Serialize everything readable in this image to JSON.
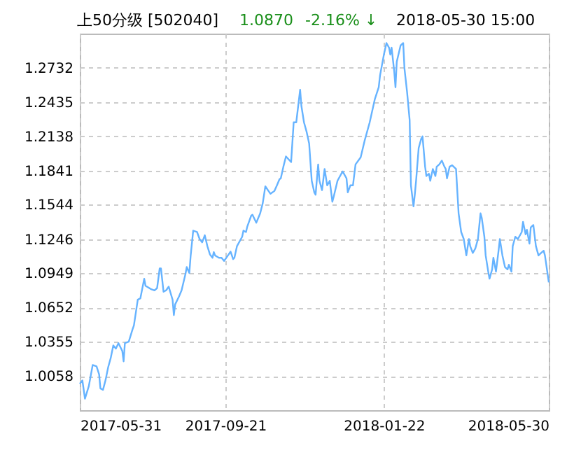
{
  "chart_data": {
    "type": "line",
    "title": "上50分级 [502040]",
    "annotations": [
      "1.0870",
      "-2.16% ↓",
      "2018-05-30 15:00"
    ],
    "x": [
      "2017-05-31",
      "2017-06-02",
      "2017-06-04",
      "2017-06-07",
      "2017-06-10",
      "2017-06-13",
      "2017-06-15",
      "2017-06-16",
      "2017-06-18",
      "2017-06-20",
      "2017-06-22",
      "2017-06-24",
      "2017-06-26",
      "2017-06-28",
      "2017-06-30",
      "2017-07-03",
      "2017-07-04",
      "2017-07-05",
      "2017-07-08",
      "2017-07-11",
      "2017-07-12",
      "2017-07-15",
      "2017-07-17",
      "2017-07-20",
      "2017-07-21",
      "2017-07-25",
      "2017-07-28",
      "2017-07-30",
      "2017-08-01",
      "2017-08-02",
      "2017-08-04",
      "2017-08-06",
      "2017-08-08",
      "2017-08-11",
      "2017-08-12",
      "2017-08-13",
      "2017-08-16",
      "2017-08-18",
      "2017-08-21",
      "2017-08-22",
      "2017-08-24",
      "2017-08-25",
      "2017-08-27",
      "2017-08-30",
      "2017-09-01",
      "2017-09-03",
      "2017-09-05",
      "2017-09-07",
      "2017-09-09",
      "2017-09-11",
      "2017-09-12",
      "2017-09-13",
      "2017-09-16",
      "2017-09-18",
      "2017-09-20",
      "2017-09-23",
      "2017-09-25",
      "2017-09-27",
      "2017-09-28",
      "2017-09-30",
      "2017-10-04",
      "2017-10-05",
      "2017-10-07",
      "2017-10-08",
      "2017-10-11",
      "2017-10-12",
      "2017-10-15",
      "2017-10-18",
      "2017-10-20",
      "2017-10-22",
      "2017-10-24",
      "2017-10-26",
      "2017-10-29",
      "2017-10-31",
      "2017-11-02",
      "2017-11-03",
      "2017-11-05",
      "2017-11-07",
      "2017-11-11",
      "2017-11-13",
      "2017-11-15",
      "2017-11-18",
      "2017-11-19",
      "2017-11-21",
      "2017-11-23",
      "2017-11-25",
      "2017-11-27",
      "2017-11-29",
      "2017-11-30",
      "2017-12-02",
      "2017-12-03",
      "2017-12-05",
      "2017-12-07",
      "2017-12-09",
      "2017-12-11",
      "2017-12-13",
      "2017-12-14",
      "2017-12-17",
      "2017-12-19",
      "2017-12-21",
      "2017-12-24",
      "2017-12-25",
      "2017-12-27",
      "2017-12-29",
      "2017-12-31",
      "2018-01-04",
      "2018-01-07",
      "2018-01-11",
      "2018-01-15",
      "2018-01-18",
      "2018-01-19",
      "2018-01-22",
      "2018-01-24",
      "2018-01-26",
      "2018-01-27",
      "2018-01-28",
      "2018-01-30",
      "2018-01-31",
      "2018-02-01",
      "2018-02-04",
      "2018-02-06",
      "2018-02-07",
      "2018-02-09",
      "2018-02-11",
      "2018-02-12",
      "2018-02-14",
      "2018-02-15",
      "2018-02-16",
      "2018-02-18",
      "2018-02-20",
      "2018-02-21",
      "2018-02-23",
      "2018-02-24",
      "2018-02-26",
      "2018-02-27",
      "2018-03-01",
      "2018-03-03",
      "2018-03-04",
      "2018-03-06",
      "2018-03-08",
      "2018-03-10",
      "2018-03-11",
      "2018-03-12",
      "2018-03-14",
      "2018-03-16",
      "2018-03-19",
      "2018-03-21",
      "2018-03-23",
      "2018-03-25",
      "2018-03-27",
      "2018-03-29",
      "2018-03-30",
      "2018-04-01",
      "2018-04-03",
      "2018-04-05",
      "2018-04-07",
      "2018-04-08",
      "2018-04-10",
      "2018-04-11",
      "2018-04-13",
      "2018-04-14",
      "2018-04-16",
      "2018-04-17",
      "2018-04-19",
      "2018-04-21",
      "2018-04-22",
      "2018-04-24",
      "2018-04-26",
      "2018-04-28",
      "2018-04-29",
      "2018-05-01",
      "2018-05-02",
      "2018-05-04",
      "2018-05-06",
      "2018-05-09",
      "2018-05-10",
      "2018-05-12",
      "2018-05-13",
      "2018-05-15",
      "2018-05-16",
      "2018-05-18",
      "2018-05-20",
      "2018-05-22",
      "2018-05-24",
      "2018-05-26",
      "2018-05-27",
      "2018-05-30"
    ],
    "series": [
      {
        "color": "#66b3ff",
        "values": [
          0.9991,
          1.0019,
          0.9861,
          0.997,
          1.0153,
          1.0141,
          1.0072,
          0.995,
          0.9938,
          1.0023,
          1.0133,
          1.0214,
          1.0323,
          1.0295,
          1.0343,
          1.0274,
          1.0185,
          1.0343,
          1.0355,
          1.0465,
          1.0497,
          1.072,
          1.0732,
          1.0902,
          1.0841,
          1.0813,
          1.0801,
          1.0821,
          1.0991,
          1.0991,
          1.0789,
          1.0801,
          1.0833,
          1.072,
          1.0586,
          1.0679,
          1.0748,
          1.0801,
          1.0942,
          1.1003,
          1.0951,
          1.1096,
          1.1319,
          1.1307,
          1.1246,
          1.1218,
          1.1279,
          1.1185,
          1.1113,
          1.1084,
          1.1133,
          1.1104,
          1.1084,
          1.1084,
          1.1056,
          1.1104,
          1.1137,
          1.1072,
          1.1084,
          1.1185,
          1.1266,
          1.1319,
          1.1307,
          1.1355,
          1.1448,
          1.1457,
          1.1388,
          1.1469,
          1.1558,
          1.1704,
          1.1671,
          1.1639,
          1.1663,
          1.1712,
          1.1765,
          1.1773,
          1.1874,
          1.1963,
          1.1914,
          1.2259,
          1.2259,
          1.2542,
          1.24,
          1.2259,
          1.2178,
          1.2076,
          1.1752,
          1.1651,
          1.1631,
          1.1894,
          1.1752,
          1.1671,
          1.1854,
          1.1712,
          1.1752,
          1.157,
          1.1611,
          1.1752,
          1.1793,
          1.1833,
          1.1773,
          1.1651,
          1.1712,
          1.1712,
          1.1894,
          1.1955,
          1.2097,
          1.2259,
          1.2461,
          1.2563,
          1.2664,
          1.2846,
          1.2947,
          1.2907,
          1.2846,
          1.2907,
          1.2704,
          1.2563,
          1.2785,
          1.2927,
          1.2947,
          1.2724,
          1.2522,
          1.2279,
          1.1712,
          1.153,
          1.1631,
          1.1752,
          1.2036,
          1.2117,
          1.2137,
          1.1874,
          1.1793,
          1.1813,
          1.1752,
          1.1854,
          1.1793,
          1.1874,
          1.1894,
          1.1927,
          1.1874,
          1.1854,
          1.1773,
          1.1874,
          1.1886,
          1.1854,
          1.1469,
          1.1307,
          1.1246,
          1.1104,
          1.1246,
          1.1185,
          1.1125,
          1.1165,
          1.1246,
          1.1469,
          1.1428,
          1.1266,
          1.1104,
          1.0963,
          1.0902,
          1.0983,
          1.1084,
          1.0963,
          1.1145,
          1.1246,
          1.1104,
          1.1003,
          1.0983,
          1.1023,
          1.0963,
          1.1185,
          1.1266,
          1.1246,
          1.1307,
          1.1396,
          1.1287,
          1.1327,
          1.1206,
          1.1347,
          1.1368,
          1.1185,
          1.1104,
          1.1125,
          1.1145,
          1.1104,
          1.087
        ]
      }
    ],
    "xlim": [
      "2017-05-31",
      "2018-05-30"
    ],
    "xticks": [
      "2017-05-31",
      "2017-09-21",
      "2018-01-22",
      "2018-05-30"
    ],
    "ylim": [
      0.9761,
      1.3029
    ],
    "yticks": [
      1.0058,
      1.0355,
      1.0652,
      1.0949,
      1.1246,
      1.1544,
      1.1841,
      1.2138,
      1.2435,
      1.2732
    ],
    "grid": true
  }
}
